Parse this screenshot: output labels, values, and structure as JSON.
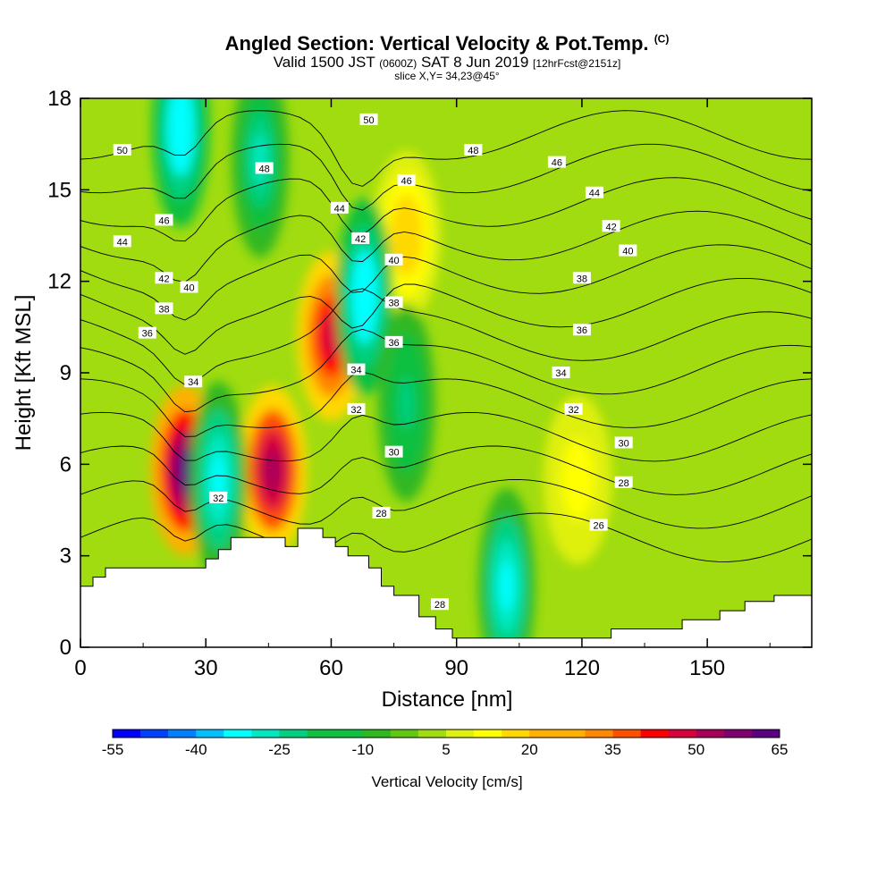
{
  "title": {
    "main": "Angled Section: Vertical Velocity & Pot.Temp.",
    "unit_tag": "(C)",
    "valid_prefix": "Valid 1500 JST",
    "valid_utc": "(0600Z)",
    "valid_date": "SAT 8 Jun 2019",
    "forecast": "[12hrFcst@2151z]",
    "slice": "slice X,Y= 34,23@45°"
  },
  "colors": {
    "scale": [
      "#0000ff",
      "#0040ff",
      "#0080ff",
      "#00c0ff",
      "#00ffff",
      "#00e8c0",
      "#00d080",
      "#10c040",
      "#30b820",
      "#60c810",
      "#a0dc10",
      "#e0f010",
      "#ffff00",
      "#ffd800",
      "#ffb000",
      "#ff8800",
      "#ff5000",
      "#ff0000",
      "#d8003c",
      "#a8005a",
      "#800070",
      "#5a0080"
    ],
    "terrain": "#ffffff"
  },
  "chart_data": {
    "type": "heatmap",
    "xlabel": "Distance [nm]",
    "ylabel": "Height [Kft MSL]",
    "xlim": [
      0,
      175
    ],
    "ylim": [
      0,
      18
    ],
    "xticks": [
      0,
      30,
      60,
      90,
      120,
      150
    ],
    "yticks": [
      0,
      3,
      6,
      9,
      12,
      15,
      18
    ],
    "colorbar": {
      "label": "Vertical Velocity [cm/s]",
      "min": -55,
      "max": 65,
      "step": 5,
      "tick_labels": [
        -55,
        -40,
        -25,
        -10,
        5,
        20,
        35,
        50,
        65
      ]
    },
    "updraft_cores": [
      {
        "x": 25,
        "y": 5.8,
        "value": 65
      },
      {
        "x": 46,
        "y": 5.8,
        "value": 55
      },
      {
        "x": 60,
        "y": 10.2,
        "value": 50
      },
      {
        "x": 78,
        "y": 13.5,
        "value": 20
      },
      {
        "x": 119,
        "y": 5.5,
        "value": 15
      }
    ],
    "downdraft_cores": [
      {
        "x": 24,
        "y": 17,
        "value": -35
      },
      {
        "x": 33,
        "y": 5.5,
        "value": -30
      },
      {
        "x": 43,
        "y": 16,
        "value": -25
      },
      {
        "x": 68,
        "y": 11.5,
        "value": -35
      },
      {
        "x": 78,
        "y": 8,
        "value": -20
      },
      {
        "x": 102,
        "y": 2,
        "value": -30
      }
    ],
    "isentropes": [
      26,
      28,
      30,
      32,
      34,
      36,
      38,
      40,
      42,
      44,
      46,
      48,
      50
    ],
    "isentrope_labels": [
      {
        "text": "50",
        "x": 10,
        "y": 16.3
      },
      {
        "text": "44",
        "x": 10,
        "y": 13.3
      },
      {
        "text": "46",
        "x": 20,
        "y": 14.0
      },
      {
        "text": "42",
        "x": 20,
        "y": 12.1
      },
      {
        "text": "40",
        "x": 26,
        "y": 11.8
      },
      {
        "text": "38",
        "x": 20,
        "y": 11.1
      },
      {
        "text": "36",
        "x": 16,
        "y": 10.3
      },
      {
        "text": "34",
        "x": 27,
        "y": 8.7
      },
      {
        "text": "32",
        "x": 33,
        "y": 4.9
      },
      {
        "text": "48",
        "x": 44,
        "y": 15.7
      },
      {
        "text": "44",
        "x": 62,
        "y": 14.4
      },
      {
        "text": "42",
        "x": 67,
        "y": 13.4
      },
      {
        "text": "50",
        "x": 69,
        "y": 17.3
      },
      {
        "text": "46",
        "x": 78,
        "y": 15.3
      },
      {
        "text": "40",
        "x": 75,
        "y": 12.7
      },
      {
        "text": "38",
        "x": 75,
        "y": 11.3
      },
      {
        "text": "36",
        "x": 75,
        "y": 10.0
      },
      {
        "text": "34",
        "x": 66,
        "y": 9.1
      },
      {
        "text": "32",
        "x": 66,
        "y": 7.8
      },
      {
        "text": "30",
        "x": 75,
        "y": 6.4
      },
      {
        "text": "28",
        "x": 72,
        "y": 4.4
      },
      {
        "text": "28",
        "x": 86,
        "y": 1.4
      },
      {
        "text": "48",
        "x": 94,
        "y": 16.3
      },
      {
        "text": "46",
        "x": 114,
        "y": 15.9
      },
      {
        "text": "44",
        "x": 123,
        "y": 14.9
      },
      {
        "text": "42",
        "x": 127,
        "y": 13.8
      },
      {
        "text": "40",
        "x": 131,
        "y": 13.0
      },
      {
        "text": "38",
        "x": 120,
        "y": 12.1
      },
      {
        "text": "36",
        "x": 120,
        "y": 10.4
      },
      {
        "text": "34",
        "x": 115,
        "y": 9.0
      },
      {
        "text": "32",
        "x": 118,
        "y": 7.8
      },
      {
        "text": "30",
        "x": 130,
        "y": 6.7
      },
      {
        "text": "28",
        "x": 130,
        "y": 5.4
      },
      {
        "text": "26",
        "x": 124,
        "y": 4.0
      }
    ],
    "terrain_profile": [
      [
        0,
        2.0
      ],
      [
        3,
        2.0
      ],
      [
        3,
        2.3
      ],
      [
        6,
        2.3
      ],
      [
        6,
        2.6
      ],
      [
        30,
        2.6
      ],
      [
        30,
        2.9
      ],
      [
        33,
        2.9
      ],
      [
        33,
        3.2
      ],
      [
        36,
        3.2
      ],
      [
        36,
        3.6
      ],
      [
        49,
        3.6
      ],
      [
        49,
        3.3
      ],
      [
        52,
        3.3
      ],
      [
        52,
        3.9
      ],
      [
        58,
        3.9
      ],
      [
        58,
        3.6
      ],
      [
        61,
        3.6
      ],
      [
        61,
        3.3
      ],
      [
        64,
        3.3
      ],
      [
        64,
        3.0
      ],
      [
        69,
        3.0
      ],
      [
        69,
        2.6
      ],
      [
        72,
        2.6
      ],
      [
        72,
        2.0
      ],
      [
        75,
        2.0
      ],
      [
        75,
        1.7
      ],
      [
        81,
        1.7
      ],
      [
        81,
        1.0
      ],
      [
        85,
        1.0
      ],
      [
        85,
        0.6
      ],
      [
        89,
        0.6
      ],
      [
        89,
        0.3
      ],
      [
        127,
        0.3
      ],
      [
        127,
        0.6
      ],
      [
        144,
        0.6
      ],
      [
        144,
        0.9
      ],
      [
        153,
        0.9
      ],
      [
        153,
        1.2
      ],
      [
        159,
        1.2
      ],
      [
        159,
        1.5
      ],
      [
        166,
        1.5
      ],
      [
        166,
        1.7
      ],
      [
        175,
        1.7
      ]
    ]
  }
}
